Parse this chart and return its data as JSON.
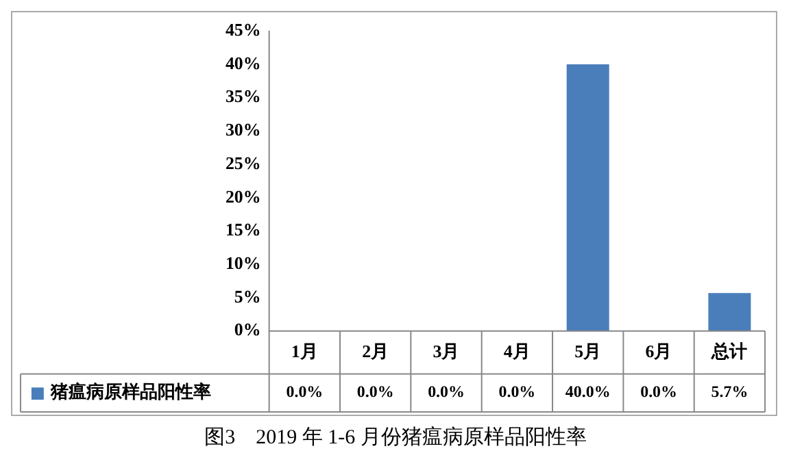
{
  "chart_data": {
    "type": "bar",
    "title": "图3　2019 年 1-6 月份猪瘟病原样品阳性率",
    "categories": [
      "1月",
      "2月",
      "3月",
      "4月",
      "5月",
      "6月",
      "总计"
    ],
    "series": [
      {
        "name": "猪瘟病原样品阳性率",
        "color": "#4a7ebb",
        "values": [
          0,
          0,
          0,
          0,
          40,
          0,
          5.7
        ],
        "value_labels": [
          "0.0%",
          "0.0%",
          "0.0%",
          "0.0%",
          "40.0%",
          "0.0%",
          "5.7%"
        ]
      }
    ],
    "ylim": [
      0,
      45
    ],
    "yticks": [
      {
        "value": 0,
        "label": "0%"
      },
      {
        "value": 5,
        "label": "5%"
      },
      {
        "value": 10,
        "label": "10%"
      },
      {
        "value": 15,
        "label": "15%"
      },
      {
        "value": 20,
        "label": "20%"
      },
      {
        "value": 25,
        "label": "25%"
      },
      {
        "value": 30,
        "label": "30%"
      },
      {
        "value": 35,
        "label": "35%"
      },
      {
        "value": 40,
        "label": "40%"
      },
      {
        "value": 45,
        "label": "45%"
      }
    ],
    "grid": false,
    "legend": "bottom"
  }
}
